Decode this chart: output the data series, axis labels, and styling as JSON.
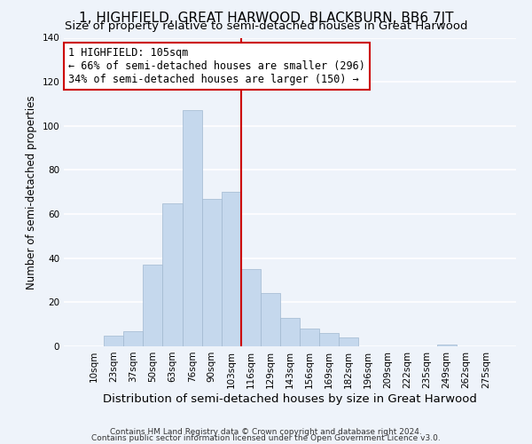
{
  "title": "1, HIGHFIELD, GREAT HARWOOD, BLACKBURN, BB6 7JT",
  "subtitle": "Size of property relative to semi-detached houses in Great Harwood",
  "xlabel": "Distribution of semi-detached houses by size in Great Harwood",
  "ylabel": "Number of semi-detached properties",
  "footnote1": "Contains HM Land Registry data © Crown copyright and database right 2024.",
  "footnote2": "Contains public sector information licensed under the Open Government Licence v3.0.",
  "bar_labels": [
    "10sqm",
    "23sqm",
    "37sqm",
    "50sqm",
    "63sqm",
    "76sqm",
    "90sqm",
    "103sqm",
    "116sqm",
    "129sqm",
    "143sqm",
    "156sqm",
    "169sqm",
    "182sqm",
    "196sqm",
    "209sqm",
    "222sqm",
    "235sqm",
    "249sqm",
    "262sqm",
    "275sqm"
  ],
  "bar_values": [
    0,
    5,
    7,
    37,
    65,
    107,
    67,
    70,
    35,
    24,
    13,
    8,
    6,
    4,
    0,
    0,
    0,
    0,
    1,
    0,
    0
  ],
  "bar_color": "#c5d8ed",
  "bar_edge_color": "#a0b8d0",
  "vline_idx": 7,
  "vline_color": "#cc0000",
  "annotation_line1": "1 HIGHFIELD: 105sqm",
  "annotation_line2": "← 66% of semi-detached houses are smaller (296)",
  "annotation_line3": "34% of semi-detached houses are larger (150) →",
  "annotation_box_edgecolor": "#cc0000",
  "annotation_box_facecolor": "#ffffff",
  "ylim": [
    0,
    140
  ],
  "yticks": [
    0,
    20,
    40,
    60,
    80,
    100,
    120,
    140
  ],
  "background_color": "#eef3fa",
  "grid_color": "#ffffff",
  "title_fontsize": 11,
  "subtitle_fontsize": 9.5,
  "xlabel_fontsize": 9.5,
  "ylabel_fontsize": 8.5,
  "tick_fontsize": 7.5,
  "annotation_fontsize": 8.5,
  "footnote_fontsize": 6.5
}
